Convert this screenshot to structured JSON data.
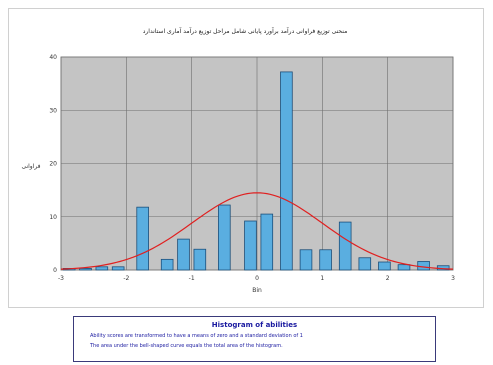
{
  "chart_data": {
    "type": "bar",
    "title": "منحنی توزیع فراوانی درآمد برآورد پایانی شامل مراحل توزیع درآمد آماری استاندارد",
    "xlabel": "Bin",
    "ylabel": "فراوانی",
    "xlim": [
      -3,
      3
    ],
    "ylim": [
      0,
      40
    ],
    "x_ticks": [
      "-3",
      "-2",
      "-1",
      "0",
      "1",
      "2",
      "3"
    ],
    "y_ticks": [
      "0",
      "10",
      "20",
      "30",
      "40"
    ],
    "grid": true,
    "bin_width": 0.25,
    "bars": [
      {
        "x": -2.875,
        "value": 0.3
      },
      {
        "x": -2.625,
        "value": 0.3
      },
      {
        "x": -2.375,
        "value": 0.6
      },
      {
        "x": -2.125,
        "value": 0.6
      },
      {
        "x": -1.75,
        "value": 11.8
      },
      {
        "x": -1.375,
        "value": 2.0
      },
      {
        "x": -1.125,
        "value": 5.8
      },
      {
        "x": -0.875,
        "value": 3.9
      },
      {
        "x": -0.5,
        "value": 12.2
      },
      {
        "x": -0.1,
        "value": 9.2
      },
      {
        "x": 0.15,
        "value": 10.5
      },
      {
        "x": 0.45,
        "value": 37.2
      },
      {
        "x": 0.75,
        "value": 3.8
      },
      {
        "x": 1.05,
        "value": 3.8
      },
      {
        "x": 1.35,
        "value": 9.0
      },
      {
        "x": 1.65,
        "value": 2.3
      },
      {
        "x": 1.95,
        "value": 1.5
      },
      {
        "x": 2.25,
        "value": 1.0
      },
      {
        "x": 2.55,
        "value": 1.6
      },
      {
        "x": 2.85,
        "value": 0.8
      }
    ],
    "normal_curve": {
      "mean": 0,
      "sd": 1,
      "peak": 14.5
    },
    "colors": {
      "bar": "#5aaee0",
      "bar_edge": "#1c4f7a",
      "curve": "#e02020",
      "plot_bg": "#c4c4c4",
      "grid": "#6e6e6e"
    }
  },
  "legend": {
    "title": "Histogram of abilities",
    "line1": "Ability scores are transformed to have a means of zero and a standard deviation of 1",
    "line2": "The area under the bell-shaped curve equals the total area of the histogram."
  }
}
